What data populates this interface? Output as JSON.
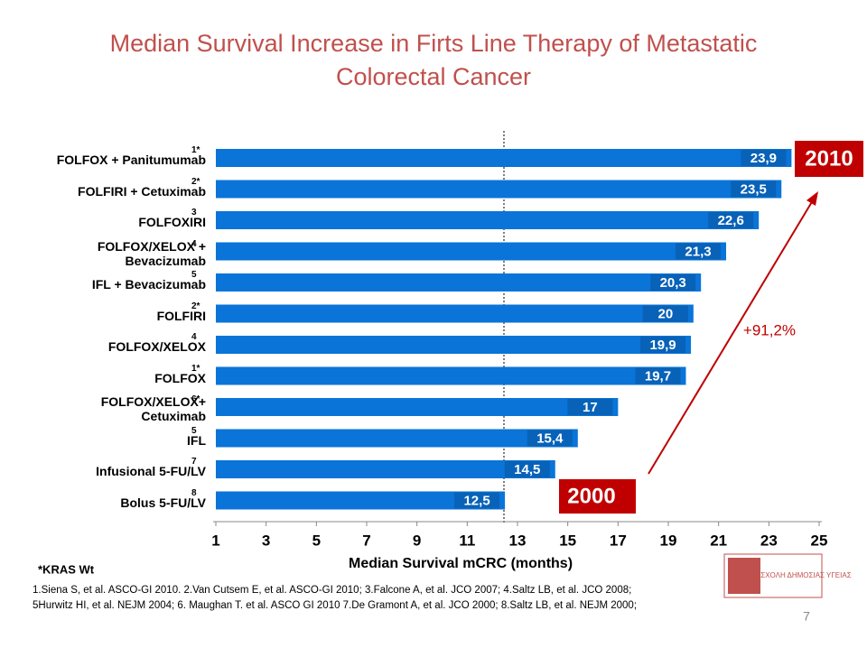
{
  "chart_data": {
    "type": "hbar",
    "title": "Median Survival Increase in Firts Line Therapy of Metastatic Colorectal Cancer",
    "x_label": "Median Survival  mCRC (months)",
    "categories": [
      "FOLFOX + Panitumumab",
      "FOLFIRI + Cetuximab",
      "FOLFOXIRI",
      "FOLFOX/XELOX +\nBevacizumab",
      "IFL + Bevacizumab",
      "FOLFIRI",
      "FOLFOX/XELOX",
      "FOLFOX",
      "FOLFOX/XELOX+\nCetuximab",
      "IFL",
      "Infusional 5-FU/LV",
      "Bolus 5-FU/LV"
    ],
    "category_refs": [
      "1*",
      "2*",
      "3",
      "4",
      "5",
      "2*",
      "4",
      "1*",
      "6*",
      "5",
      "7",
      "8"
    ],
    "values": [
      23.9,
      23.5,
      22.6,
      21.3,
      20.3,
      20,
      19.9,
      19.7,
      17,
      15.4,
      14.5,
      12.5
    ],
    "value_labels": [
      "23,9",
      "23,5",
      "22,6",
      "21,3",
      "20,3",
      "20",
      "19,9",
      "19,7",
      "17",
      "15,4",
      "14,5",
      "12,5"
    ],
    "color": "#0a74d8",
    "xlim": [
      1,
      25
    ],
    "xticks": [
      1,
      3,
      5,
      7,
      9,
      11,
      13,
      15,
      17,
      19,
      21,
      23,
      25
    ]
  },
  "badges": [
    "2010",
    "2000"
  ],
  "increase": "+91,2%",
  "kras_note": "*KRAS Wt",
  "references": [
    "1.Siena S, et al. ASCO-GI 2010. 2.Van Cutsem E, et al. ASCO-GI 2010; 3.Falcone A, et al. JCO 2007; 4.Saltz LB, et al. JCO 2008;",
    "5Hurwitz HI, et al. NEJM 2004;  6. Maughan T. et al. ASCO GI 2010 7.De Gramont A, et al. JCO 2000; 8.Saltz LB, et al. NEJM 2000;"
  ],
  "logo_text": "ΕΘΝΙΚΗ ΣΧΟΛΗ ΔΗΜΟΣΙΑΣ ΥΓΕΙΑΣ",
  "page_number": "7"
}
